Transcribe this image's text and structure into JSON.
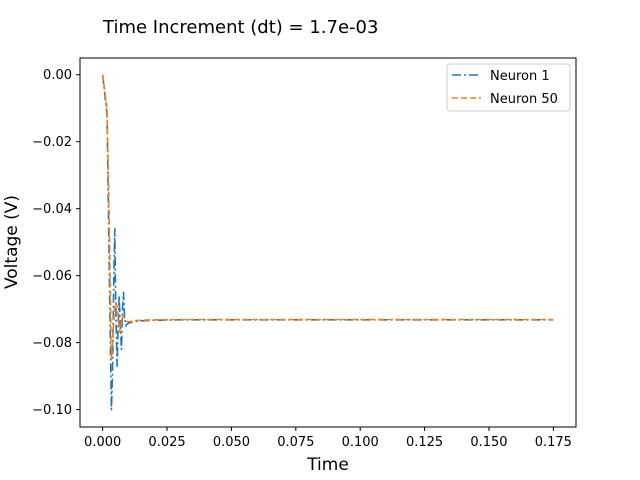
{
  "chart_data": {
    "type": "line",
    "title": "Time Increment (dt) = 1.7e-03",
    "xlabel": "Time",
    "ylabel": "Voltage (V)",
    "xlim": [
      -0.0088,
      0.1838
    ],
    "ylim": [
      -0.1052,
      0.005
    ],
    "xticks": [
      0.0,
      0.025,
      0.05,
      0.075,
      0.1,
      0.125,
      0.15,
      0.175
    ],
    "xtick_labels": [
      "0.000",
      "0.025",
      "0.050",
      "0.075",
      "0.100",
      "0.125",
      "0.150",
      "0.175"
    ],
    "yticks": [
      0.0,
      -0.02,
      -0.04,
      -0.06,
      -0.08,
      -0.1
    ],
    "ytick_labels": [
      "0.00",
      "−0.02",
      "−0.04",
      "−0.06",
      "−0.08",
      "−0.10"
    ],
    "grid": false,
    "legend_position": "top-right",
    "series": [
      {
        "name": "Neuron 1",
        "color": "#1f77b4",
        "dash": "dashdot",
        "x": [
          0.0,
          0.0017,
          0.0026,
          0.0034,
          0.0038,
          0.0043,
          0.0047,
          0.0051,
          0.0056,
          0.006,
          0.0064,
          0.0068,
          0.0073,
          0.0077,
          0.0081,
          0.0085,
          0.009,
          0.0094,
          0.01,
          0.011,
          0.012,
          0.0135,
          0.015,
          0.018,
          0.022,
          0.03,
          0.05,
          0.075,
          0.1,
          0.125,
          0.15,
          0.175
        ],
        "y": [
          0.0,
          -0.012,
          -0.06,
          -0.1,
          -0.09,
          -0.062,
          -0.046,
          -0.07,
          -0.087,
          -0.076,
          -0.066,
          -0.074,
          -0.082,
          -0.07,
          -0.065,
          -0.072,
          -0.075,
          -0.0745,
          -0.0742,
          -0.074,
          -0.0738,
          -0.0736,
          -0.0735,
          -0.0734,
          -0.0733,
          -0.0732,
          -0.0732,
          -0.0732,
          -0.0732,
          -0.0732,
          -0.0732,
          -0.0732
        ]
      },
      {
        "name": "Neuron 50",
        "color": "#ff7f0e",
        "dash": "dashed",
        "x": [
          0.0,
          0.0017,
          0.0026,
          0.0034,
          0.004,
          0.0046,
          0.0051,
          0.0056,
          0.0062,
          0.0068,
          0.0074,
          0.008,
          0.009,
          0.01,
          0.0115,
          0.013,
          0.015,
          0.02,
          0.03,
          0.05,
          0.075,
          0.1,
          0.125,
          0.15,
          0.175
        ],
        "y": [
          0.0,
          -0.01,
          -0.045,
          -0.085,
          -0.078,
          -0.07,
          -0.068,
          -0.069,
          -0.074,
          -0.077,
          -0.073,
          -0.072,
          -0.0735,
          -0.0738,
          -0.0736,
          -0.0734,
          -0.0733,
          -0.0732,
          -0.0731,
          -0.0731,
          -0.0731,
          -0.0731,
          -0.0731,
          -0.0731,
          -0.0731
        ]
      }
    ]
  }
}
